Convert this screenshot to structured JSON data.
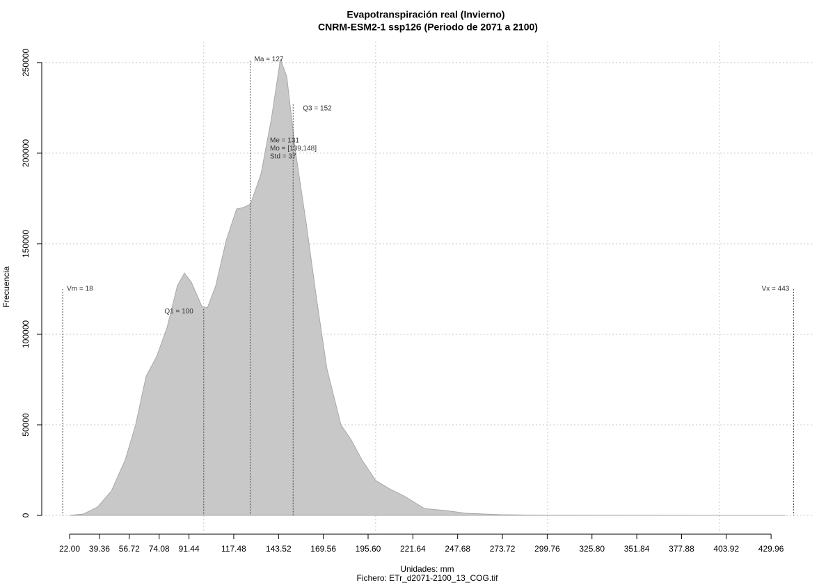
{
  "chart_data": {
    "type": "area",
    "title": "Evapotranspiración real (Invierno)",
    "subtitle": "CNRM-ESM2-1 ssp126 (Periodo de 2071 a 2100)",
    "x_label": "Unidades: mm",
    "file_label": "Fichero: ETr_d2071-2100_13_COG.tif",
    "y_label": "Frecuencia",
    "color": "#c8c8c8",
    "x": [
      22,
      30.1,
      38.2,
      46.3,
      54.4,
      60.4,
      66.5,
      72.6,
      78.7,
      84.7,
      88.8,
      92.8,
      98.9,
      102.1,
      107.0,
      113.1,
      119.1,
      123.2,
      127.2,
      133.3,
      139.4,
      144.6,
      148.3,
      153.5,
      159.6,
      165.7,
      171.7,
      179.8,
      185.9,
      191.9,
      200.1,
      208.2,
      216.3,
      228.4,
      240.5,
      252.7,
      272.9,
      297.2,
      345.8,
      438
    ],
    "values": [
      0,
      770,
      4600,
      13500,
      30800,
      50000,
      76900,
      87700,
      103800,
      126900,
      133800,
      128800,
      115400,
      114600,
      126900,
      151900,
      169200,
      170000,
      171900,
      188500,
      219200,
      251900,
      242300,
      200000,
      161500,
      119200,
      80800,
      50000,
      41500,
      30800,
      19200,
      14600,
      10800,
      3800,
      2700,
      1150,
      380,
      100,
      40,
      0
    ],
    "xlim": [
      5.8,
      455
    ],
    "ylim": [
      -9600,
      261500
    ],
    "xticks": [
      {
        "value": 22,
        "label": "22.00"
      },
      39.36,
      56.72,
      74.08,
      91.44,
      117.48,
      143.52,
      169.56,
      {
        "value": 195.6,
        "label": "195.60"
      },
      221.64,
      247.68,
      273.72,
      299.76,
      {
        "value": 325.8,
        "label": "325.80"
      },
      351.84,
      377.88,
      403.92,
      429.96
    ],
    "xgrid": [
      100,
      200,
      300,
      400
    ],
    "yticks": [
      0,
      50000,
      100000,
      150000,
      200000,
      250000
    ],
    "grid": true,
    "markers": [
      {
        "text": "Vm = 18",
        "x": 18,
        "y": 125000
      },
      {
        "text": "Q1 = 100",
        "x": 100,
        "y": 114000
      },
      {
        "text": "Ma = 127",
        "x": 127,
        "y": 251000
      },
      {
        "text": "Q3 = 152",
        "x": 152,
        "y": 227000
      },
      {
        "text": "Vx = 443",
        "x": 443,
        "y": 125000
      }
    ],
    "stats": [
      "Me = 131",
      "Mo = [139,148]",
      "Std = 37"
    ]
  }
}
